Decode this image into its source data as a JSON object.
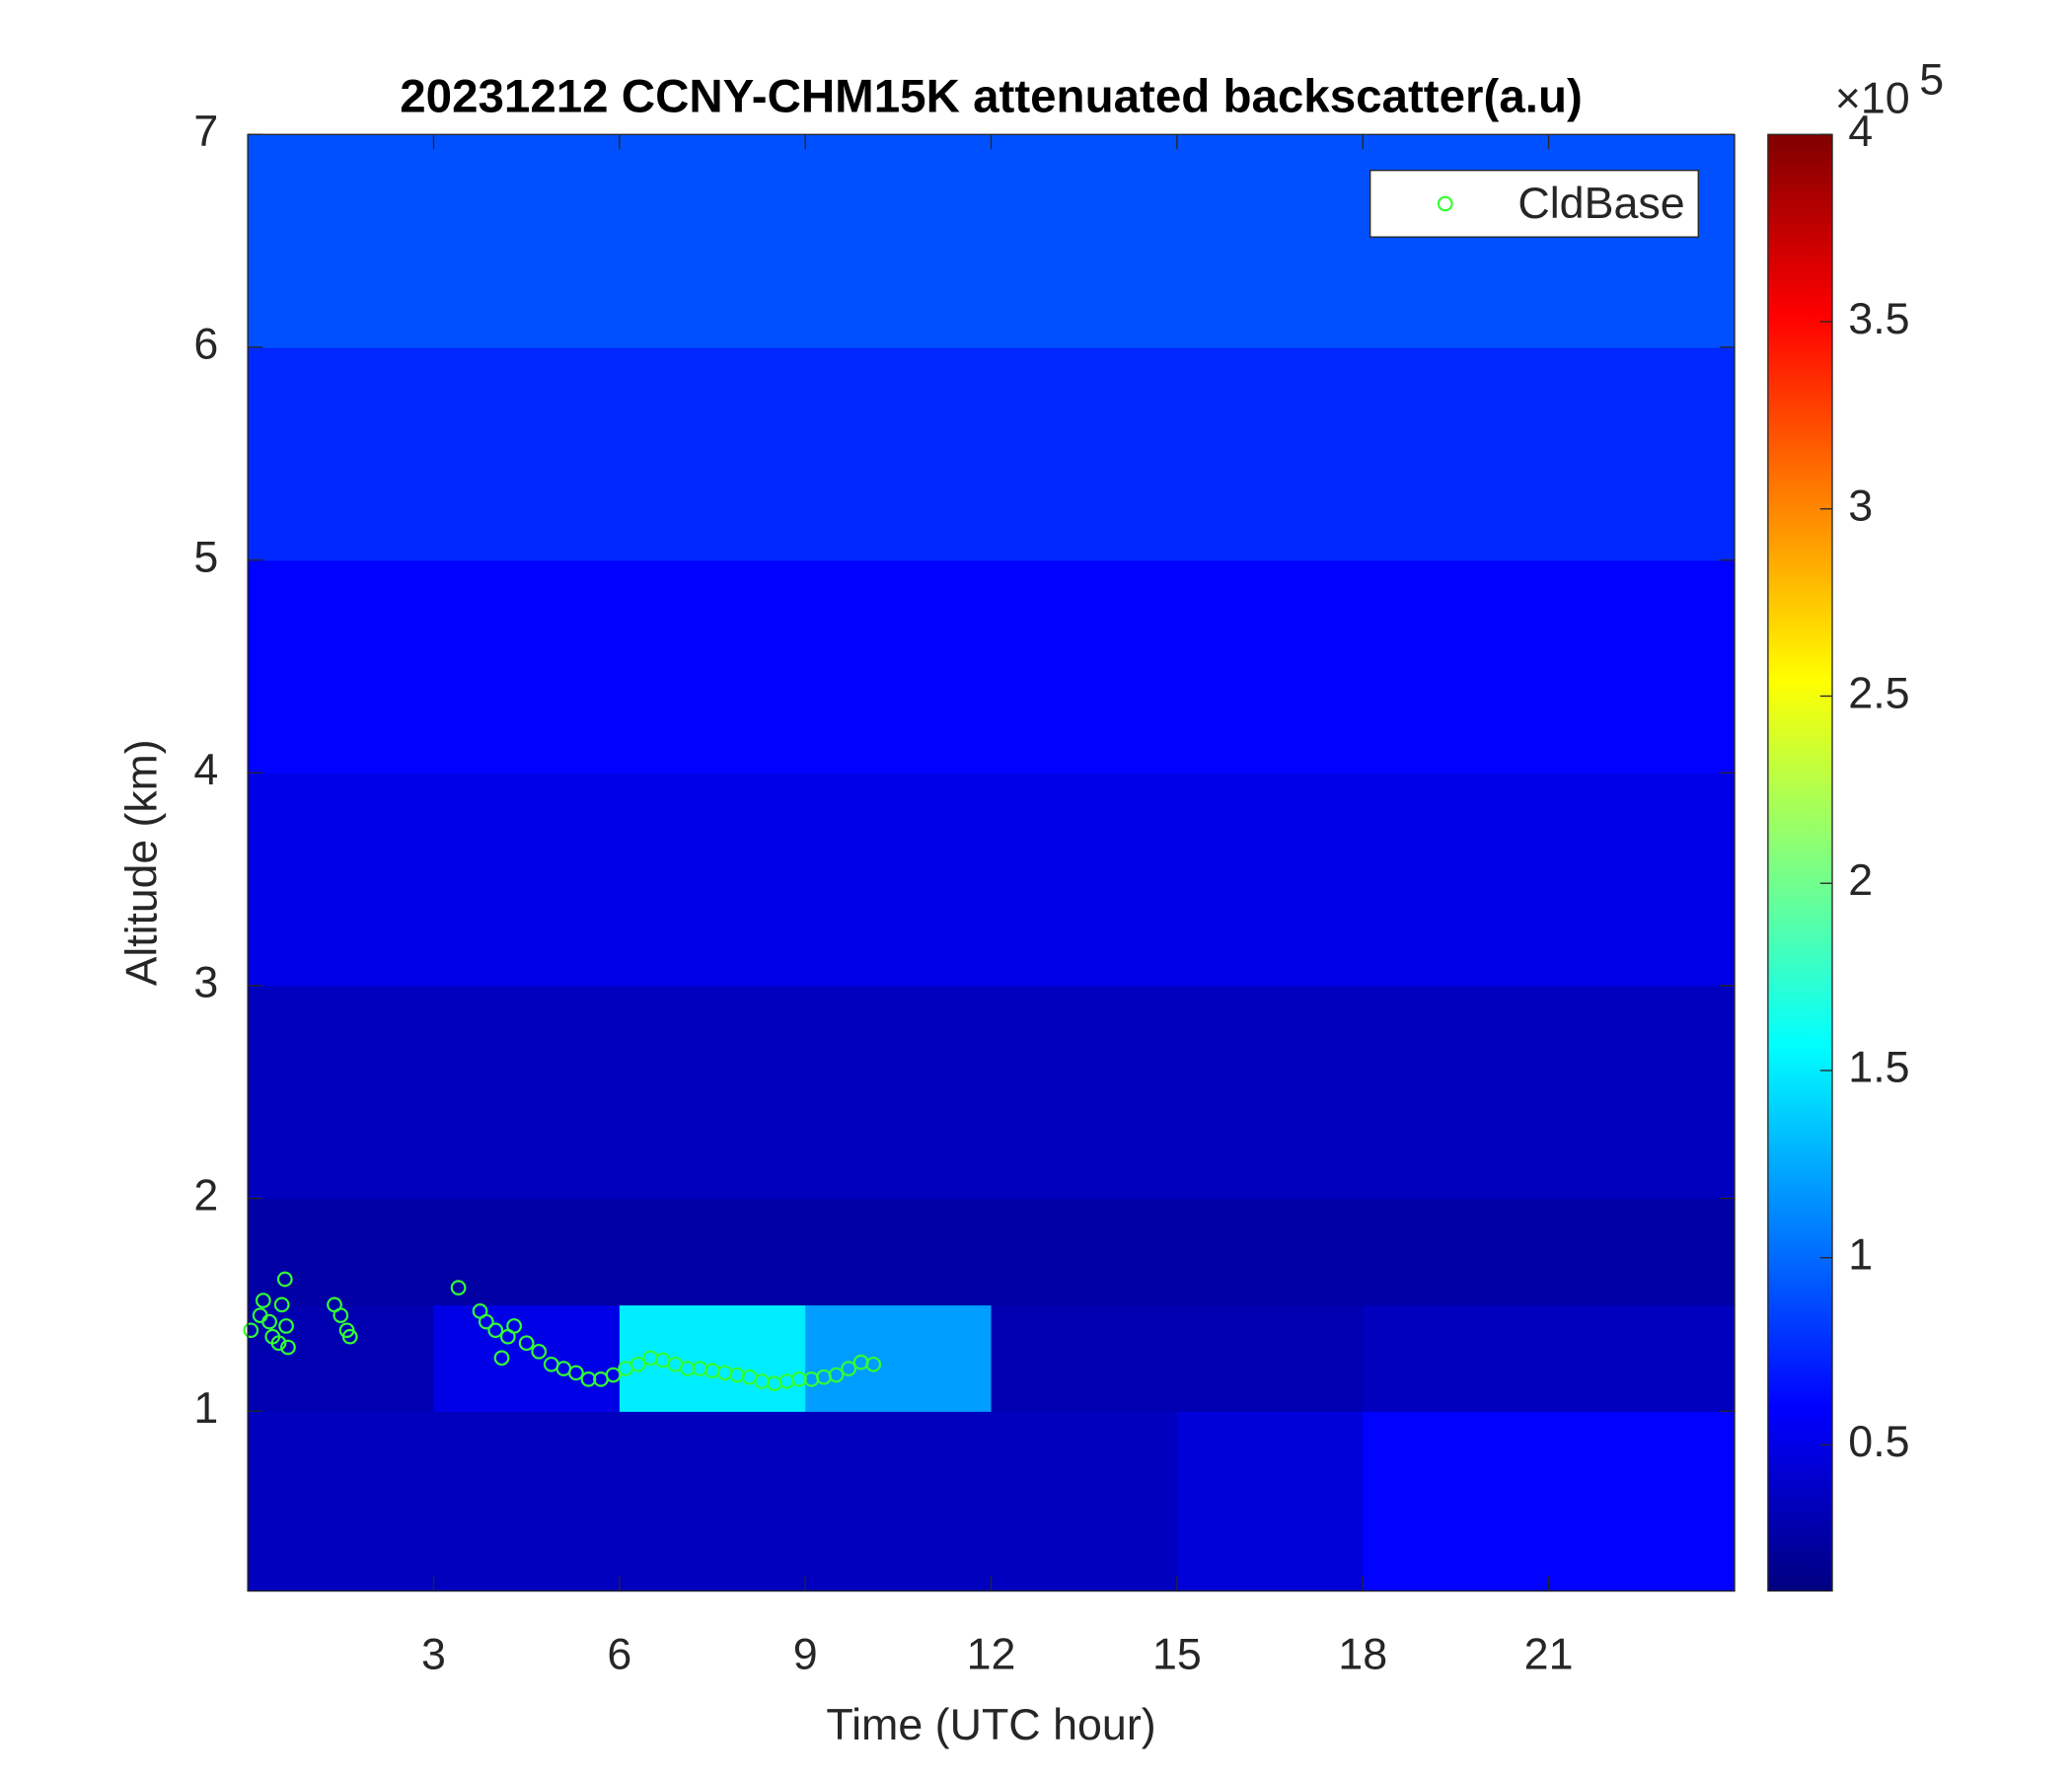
{
  "chart_data": {
    "type": "heatmap",
    "title": "20231212 CCNY-CHM15K attenuated backscatter(a.u)",
    "x_label": "Time (UTC hour)",
    "y_label": "Altitude (km)",
    "xlim": [
      0,
      24
    ],
    "xticks": [
      3,
      6,
      9,
      12,
      15,
      18,
      21
    ],
    "ylim": [
      0.155,
      7
    ],
    "yticks": [
      1,
      2,
      3,
      4,
      5,
      6,
      7
    ],
    "colormap": "jet",
    "clim": [
      0.11,
      4
    ],
    "cticks": [
      0.5,
      1,
      1.5,
      2,
      2.5,
      3,
      3.5,
      4
    ],
    "colorbar_multiplier": {
      "base": "×10",
      "exponent": "5"
    },
    "heatmap": {
      "x_edges": [
        0,
        3,
        6,
        9,
        12,
        15,
        18,
        21,
        24
      ],
      "y_edges": [
        0.155,
        1,
        1.5,
        2,
        3,
        4,
        5,
        6,
        7
      ],
      "values": [
        [
          0.35,
          0.35,
          0.35,
          0.35,
          0.35,
          0.45,
          0.6,
          0.6
        ],
        [
          0.3,
          0.5,
          1.5,
          1.2,
          0.3,
          0.3,
          0.35,
          0.35
        ],
        [
          0.25,
          0.25,
          0.25,
          0.25,
          0.25,
          0.25,
          0.25,
          0.25
        ],
        [
          0.35,
          0.35,
          0.35,
          0.35,
          0.35,
          0.35,
          0.35,
          0.35
        ],
        [
          0.5,
          0.5,
          0.5,
          0.5,
          0.5,
          0.5,
          0.5,
          0.5
        ],
        [
          0.6,
          0.6,
          0.6,
          0.6,
          0.6,
          0.6,
          0.6,
          0.6
        ],
        [
          0.75,
          0.75,
          0.75,
          0.75,
          0.75,
          0.75,
          0.75,
          0.75
        ],
        [
          0.9,
          0.9,
          0.9,
          0.9,
          0.9,
          0.9,
          0.9,
          0.9
        ]
      ]
    },
    "legend": "upper right",
    "series": [
      {
        "name": "CldBase",
        "color": "#33ff33",
        "marker": "circle",
        "x": [
          0.05,
          0.2,
          0.25,
          0.35,
          0.4,
          0.5,
          0.55,
          0.6,
          0.62,
          0.65,
          1.4,
          1.5,
          1.6,
          1.65,
          3.4,
          3.75,
          3.85,
          4.0,
          4.1,
          4.2,
          4.3,
          4.5,
          4.7,
          4.9,
          5.1,
          5.3,
          5.5,
          5.7,
          5.9,
          6.1,
          6.3,
          6.5,
          6.7,
          6.9,
          7.1,
          7.3,
          7.5,
          7.7,
          7.9,
          8.1,
          8.3,
          8.5,
          8.7,
          8.9,
          9.1,
          9.3,
          9.5,
          9.7,
          9.9,
          10.1
        ],
        "values": [
          1.38,
          1.45,
          1.52,
          1.42,
          1.35,
          1.32,
          1.5,
          1.62,
          1.4,
          1.3,
          1.5,
          1.45,
          1.38,
          1.35,
          1.58,
          1.47,
          1.42,
          1.38,
          1.25,
          1.35,
          1.4,
          1.32,
          1.28,
          1.22,
          1.2,
          1.18,
          1.15,
          1.15,
          1.17,
          1.2,
          1.22,
          1.25,
          1.24,
          1.22,
          1.2,
          1.2,
          1.19,
          1.18,
          1.17,
          1.16,
          1.14,
          1.13,
          1.14,
          1.15,
          1.15,
          1.16,
          1.17,
          1.2,
          1.23,
          1.22
        ]
      }
    ]
  }
}
